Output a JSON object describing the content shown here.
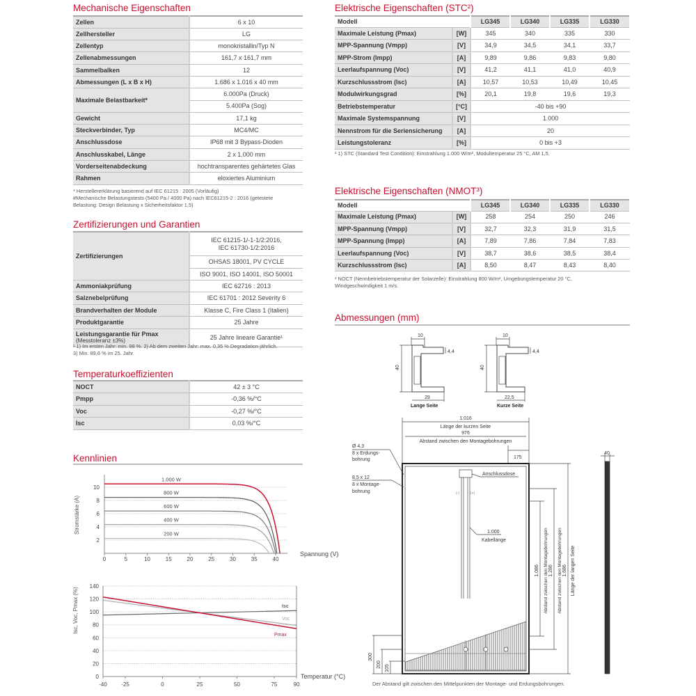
{
  "mechanical": {
    "title": "Mechanische Eigenschaften",
    "rows": [
      {
        "label": "Zellen",
        "values": [
          "6 x 10"
        ]
      },
      {
        "label": "Zellhersteller",
        "values": [
          "LG"
        ]
      },
      {
        "label": "Zellentyp",
        "values": [
          "monokristallin/Typ N"
        ]
      },
      {
        "label": "Zellenabmessungen",
        "values": [
          "161,7 x 161,7 mm"
        ]
      },
      {
        "label": "Sammelbalken",
        "values": [
          "12"
        ]
      },
      {
        "label": "Abmessungen (L x B x H)",
        "values": [
          "1.686 x 1.016 x 40 mm"
        ]
      },
      {
        "label": "Maximale Belastbarkeit*",
        "values": [
          "6.000Pa (Druck)",
          "5.400Pa (Sog)"
        ]
      },
      {
        "label": "Gewicht",
        "values": [
          "17,1 kg"
        ]
      },
      {
        "label": "Steckverbinder, Typ",
        "values": [
          "MC4/MC"
        ]
      },
      {
        "label": "Anschlussdose",
        "values": [
          "IP68 mit 3 Bypass-Dioden"
        ]
      },
      {
        "label": "Anschlusskabel, Länge",
        "values": [
          "2 x 1.000 mm"
        ]
      },
      {
        "label": "Vorderseitenabdeckung",
        "values": [
          "hochtransparentes gehärtetes Glas"
        ]
      },
      {
        "label": "Rahmen",
        "values": [
          "eloxiertes Aluminium"
        ]
      }
    ],
    "footnote": "* Herstellererklärung basierend auf IEC 61215 : 2005 (Vorläufig)\n#Mechanische Belastungstests (5400 Pa / 4000 Pa) nach IEC61215-2 : 2016 (getestete\nBelastung: Design Belastung x Sicherheitsfaktor 1,5)"
  },
  "certifications": {
    "title": "Zertifizierungen und Garantien",
    "rows": [
      {
        "label": "Zertifizierungen",
        "values": [
          "IEC 61215-1/-1-1/2:2016,\nIEC 61730-1/2:2016",
          "OHSAS 18001, PV CYCLE",
          "ISO 9001, ISO 14001, ISO 50001"
        ]
      },
      {
        "label": "Ammoniakprüfung",
        "values": [
          "IEC 62716 : 2013"
        ]
      },
      {
        "label": "Salznebelprüfung",
        "values": [
          "IEC 61701 : 2012 Severity 6"
        ]
      },
      {
        "label": "Brandverhalten der Module",
        "values": [
          "Klasse C, Fire Class 1 (Italien)"
        ]
      },
      {
        "label": "Produktgarantie",
        "values": [
          "25 Jahre"
        ]
      },
      {
        "label": "Leistungsgarantie für Pmax",
        "note": "(Messtoleranz ±3%)",
        "values": [
          "25 Jahre lineare Garantie¹"
        ]
      }
    ],
    "footnote": "¹ 1) Im ersten Jahr: min. 98 %. 2) Ab dem zweiten Jahr: max. 0,35 % Degradation jährlich.\n   3) Min. 89,6 % im 25. Jahr."
  },
  "temperature": {
    "title": "Temperaturkoeffizienten",
    "rows": [
      {
        "label": "NOCT",
        "values": [
          "42 ± 3 °C"
        ]
      },
      {
        "label": "Pmpp",
        "values": [
          "-0,36 %/°C"
        ]
      },
      {
        "label": "Voc",
        "values": [
          "-0,27 %/°C"
        ]
      },
      {
        "label": "Isc",
        "values": [
          "0,03 %/°C"
        ]
      }
    ]
  },
  "stc": {
    "title": "Elektrische Eigenschaften (STC²)",
    "header": {
      "label": "Modell",
      "models": [
        "LG345",
        "LG340",
        "LG335",
        "LG330"
      ]
    },
    "rows": [
      {
        "label": "Maximale Leistung (Pmax)",
        "unit": "[W]",
        "values": [
          "345",
          "340",
          "335",
          "330"
        ]
      },
      {
        "label": "MPP-Spannung (Vmpp)",
        "unit": "[V]",
        "values": [
          "34,9",
          "34,5",
          "34,1",
          "33,7"
        ]
      },
      {
        "label": "MPP-Strom (Impp)",
        "unit": "[A]",
        "values": [
          "9,89",
          "9,86",
          "9,83",
          "9,80"
        ]
      },
      {
        "label": "Leerlaufspannung (Voc)",
        "unit": "[V]",
        "values": [
          "41,2",
          "41,1",
          "41,0",
          "40,9"
        ]
      },
      {
        "label": "Kurzschlussstrom (Isc)",
        "unit": "[A]",
        "values": [
          "10,57",
          "10,53",
          "10,49",
          "10,45"
        ]
      },
      {
        "label": "Modulwirkungsgrad",
        "unit": "[%]",
        "values": [
          "20,1",
          "19,8",
          "19,6",
          "19,3"
        ]
      },
      {
        "label": "Betriebstemperatur",
        "unit": "[°C]",
        "values": [
          "-40 bis +90"
        ]
      },
      {
        "label": "Maximale Systemspannung",
        "unit": "[V]",
        "values": [
          "1.000"
        ]
      },
      {
        "label": "Nennstrom für die Seriensicherung",
        "unit": "[A]",
        "values": [
          "20"
        ]
      },
      {
        "label": "Leistungstoleranz",
        "unit": "[%]",
        "values": [
          "0 bis +3"
        ]
      }
    ],
    "footnote": "² 1) STC (Standard Test Condition): Einstrahlung 1.000 W/m², Modultemperatur 25 °C, AM 1,5."
  },
  "nmot": {
    "title": "Elektrische Eigenschaften (NMOT³)",
    "header": {
      "label": "Modell",
      "models": [
        "LG345",
        "LG340",
        "LG335",
        "LG330"
      ]
    },
    "rows": [
      {
        "label": "Maximale Leistung (Pmax)",
        "unit": "[W]",
        "values": [
          "258",
          "254",
          "250",
          "246"
        ]
      },
      {
        "label": "MPP-Spannung (Vmpp)",
        "unit": "[V]",
        "values": [
          "32,7",
          "32,3",
          "31,9",
          "31,5"
        ]
      },
      {
        "label": "MPP-Spannung (Impp)",
        "unit": "[A]",
        "values": [
          "7,89",
          "7,86",
          "7,84",
          "7,83"
        ]
      },
      {
        "label": "Leerlaufspannung (Voc)",
        "unit": "[V]",
        "values": [
          "38,7",
          "38,6",
          "38,5",
          "38,4"
        ]
      },
      {
        "label": "Kurzschlussstrom (Isc)",
        "unit": "[A]",
        "values": [
          "8,50",
          "8,47",
          "8,43",
          "8,40"
        ]
      }
    ],
    "footnote": "³ NOCT (Nennbetriebstemperatur der Solarzelle): Einstrahlung 800 W/m², Umgebungstemperatur 20 °C,\n   Windgeschwindigkeit 1 m/s."
  },
  "dimensions": {
    "title": "Abmessungen (mm)",
    "profile_long": {
      "name": "Lange Seite",
      "width": "10",
      "height": "40",
      "lip": "4,4",
      "base": "29"
    },
    "profile_short": {
      "name": "Kurze Seite",
      "width": "10",
      "height": "40",
      "lip": "4,4",
      "base": "22,5"
    },
    "width_value": "1.016",
    "width_label": "Länge der kurzen Seite",
    "mount_width_value": "976",
    "mount_width_label": "Abstand zwischen den Montagebohrungen",
    "offset_value": "175",
    "ground_hole": [
      "Ø 4,3",
      "8 x Erdungs-",
      "bohrung"
    ],
    "mount_hole": [
      "8,5 x 12",
      "8 x Montage-",
      "bohrung"
    ],
    "junction_box": "Anschlussdose",
    "minus": "(-)",
    "plus": "(+)",
    "cable_value": "1.000",
    "cable_label": "Kabellänge",
    "mount_len_1_value": "1.086",
    "mount_len_1_label": "Abstand zwischen den Montagebohrungen",
    "mount_len_2_value": "1.286",
    "mount_len_2_label": "Abstand zwischen den Montagebohrungen",
    "length_value": "1.686",
    "length_label": "Länge der langen Seite",
    "depth_value": "40",
    "bottom_offsets": [
      "300",
      "200",
      "105"
    ],
    "note": "Der Abstand gilt zwischen den Mittelpunkten der Montage- und Erdungsbohrungen."
  },
  "kennlinien_title": "Kennlinien",
  "chart_data": [
    {
      "type": "line",
      "xlabel": "Spannung (V)",
      "ylabel": "Stromstärke (A)",
      "xlim": [
        0,
        42
      ],
      "ylim": [
        0,
        12
      ],
      "xticks": [
        "0",
        "5",
        "10",
        "15",
        "20",
        "25",
        "30",
        "35",
        "40"
      ],
      "yticks": [
        "2",
        "4",
        "6",
        "8",
        "10"
      ],
      "grid": "horizontal dotted",
      "series": [
        {
          "name": "1.000 W",
          "isc": 10.5,
          "voc": 41.0,
          "color": "#c8102e"
        },
        {
          "name": "800 W",
          "isc": 8.45,
          "voc": 40.3,
          "color": "#555555"
        },
        {
          "name": "600 W",
          "isc": 6.4,
          "voc": 40.0,
          "color": "#777777"
        },
        {
          "name": "400 W",
          "isc": 4.35,
          "voc": 39.6,
          "color": "#999999"
        },
        {
          "name": "200 W",
          "isc": 2.25,
          "voc": 38.5,
          "color": "#bbbbbb"
        }
      ]
    },
    {
      "type": "line",
      "xlabel": "Temperatur (°C)",
      "ylabel": "Isc, Voc, Pmax (%)",
      "xlim": [
        -40,
        90
      ],
      "ylim": [
        0,
        140
      ],
      "xticks": [
        "-40",
        "-25",
        "0",
        "25",
        "50",
        "75",
        "90"
      ],
      "yticks": [
        "0",
        "20",
        "40",
        "60",
        "80",
        "100",
        "120",
        "140"
      ],
      "grid": "horizontal dotted",
      "x": [
        -40,
        90
      ],
      "series": [
        {
          "name": "Isc",
          "values": [
            95,
            102
          ],
          "color": "#666666"
        },
        {
          "name": "Voc",
          "values": [
            118,
            79
          ],
          "color": "#aaaaaa"
        },
        {
          "name": "Pmax",
          "values": [
            123,
            74
          ],
          "color": "#c8102e"
        }
      ]
    }
  ]
}
